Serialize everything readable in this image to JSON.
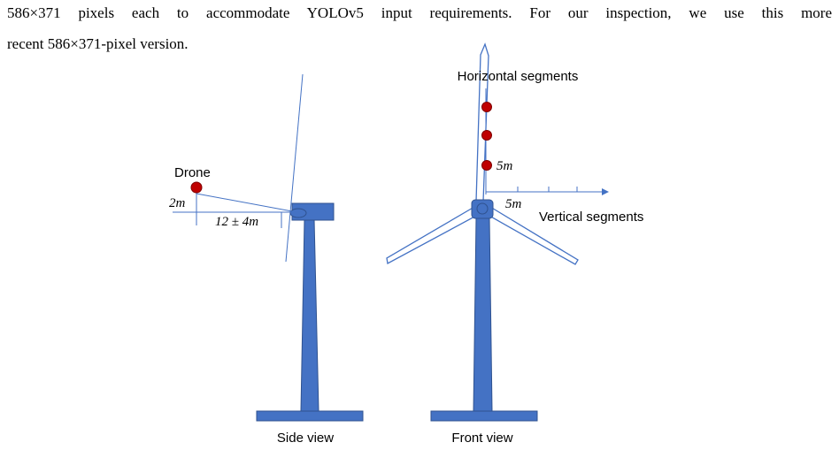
{
  "paragraph": {
    "lines": [
      "586×371 pixels each to accommodate YOLOv5 input requirements. For our inspection, we use this more",
      "recent 586×371-pixel version."
    ]
  },
  "figure": {
    "side_view": {
      "drone_label": "Drone",
      "height_label": "2m",
      "distance_label": "12 ± 4m",
      "caption": "Side view"
    },
    "front_view": {
      "horizontal_label": "Horizontal segments",
      "vertical_label": "Vertical segments",
      "vertical_step_label": "5m",
      "horizontal_step_label": "5m",
      "caption": "Front view"
    }
  }
}
